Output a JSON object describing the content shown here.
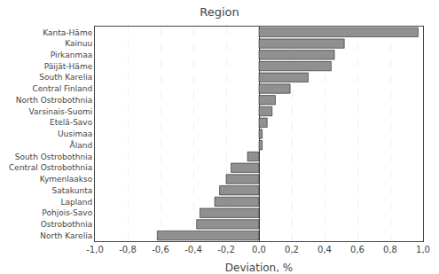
{
  "chart_data": {
    "type": "bar",
    "orientation": "horizontal",
    "title": "Region",
    "categories": [
      "Kanta-Häme",
      "Kainuu",
      "Pirkanmaa",
      "Päijät-Häme",
      "South Karelia",
      "Central Finland",
      "North Ostrobothnia",
      "Varsinais-Suomi",
      "Etelä-Savo",
      "Uusimaa",
      "Åland",
      "South Ostrobothnia",
      "Central Ostrobothnia",
      "Kymenlaakso",
      "Satakunta",
      "Lapland",
      "Pohjois-Savo",
      "Ostrobothnia",
      "North Karelia"
    ],
    "values": [
      0.97,
      0.52,
      0.46,
      0.44,
      0.3,
      0.19,
      0.1,
      0.08,
      0.05,
      0.02,
      0.02,
      -0.07,
      -0.17,
      -0.2,
      -0.24,
      -0.27,
      -0.36,
      -0.38,
      -0.62
    ],
    "color": "#909090",
    "xlabel": "Deviation, %",
    "xlim": [
      -1.0,
      1.0
    ],
    "xticks": [
      {
        "value": -1.0,
        "label": "-1,0"
      },
      {
        "value": -0.8,
        "label": "-0,8"
      },
      {
        "value": -0.6,
        "label": "-0,6"
      },
      {
        "value": -0.4,
        "label": "-0,4"
      },
      {
        "value": -0.2,
        "label": "-0,2"
      },
      {
        "value": 0.0,
        "label": "0,0"
      },
      {
        "value": 0.2,
        "label": "0,2"
      },
      {
        "value": 0.4,
        "label": "0,4"
      },
      {
        "value": 0.6,
        "label": "0,6"
      },
      {
        "value": 0.8,
        "label": "0,8"
      },
      {
        "value": 1.0,
        "label": "1,0"
      }
    ],
    "grid": true
  }
}
